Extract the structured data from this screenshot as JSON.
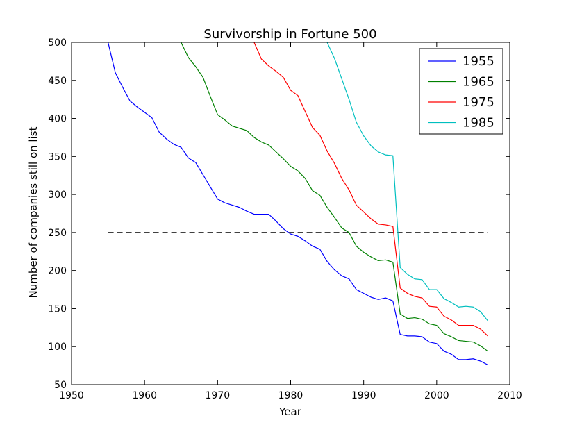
{
  "chart_data": {
    "type": "line",
    "title": "Survivorship in Fortune 500",
    "xlabel": "Year",
    "ylabel": "Number of companies still on list",
    "xlim": [
      1950,
      2010
    ],
    "ylim": [
      50,
      500
    ],
    "xticks": [
      1950,
      1960,
      1970,
      1980,
      1990,
      2000,
      2010
    ],
    "yticks": [
      50,
      100,
      150,
      200,
      250,
      300,
      350,
      400,
      450,
      500
    ],
    "grid": false,
    "legend_position": "top-right",
    "reference_line": {
      "y": 250,
      "x_start": 1955,
      "x_end": 2007,
      "style": "dashed",
      "color": "#000000"
    },
    "series": [
      {
        "name": "1955",
        "color": "#0000ff",
        "x": [
          1955,
          1956,
          1957,
          1958,
          1959,
          1960,
          1961,
          1962,
          1963,
          1964,
          1965,
          1966,
          1967,
          1968,
          1969,
          1970,
          1971,
          1972,
          1973,
          1974,
          1975,
          1976,
          1977,
          1978,
          1979,
          1980,
          1981,
          1982,
          1983,
          1984,
          1985,
          1986,
          1987,
          1988,
          1989,
          1990,
          1991,
          1992,
          1993,
          1994,
          1995,
          1996,
          1997,
          1998,
          1999,
          2000,
          2001,
          2002,
          2003,
          2004,
          2005,
          2006,
          2007
        ],
        "y": [
          500,
          460,
          441,
          423,
          415,
          408,
          401,
          382,
          373,
          366,
          362,
          348,
          342,
          326,
          310,
          294,
          289,
          286,
          283,
          278,
          274,
          274,
          274,
          265,
          255,
          248,
          245,
          239,
          232,
          228,
          212,
          201,
          193,
          189,
          175,
          170,
          165,
          162,
          164,
          160,
          116,
          114,
          114,
          113,
          106,
          104,
          94,
          90,
          83,
          83,
          84,
          81,
          76
        ]
      },
      {
        "name": "1965",
        "color": "#008000",
        "x": [
          1965,
          1966,
          1967,
          1968,
          1969,
          1970,
          1971,
          1972,
          1973,
          1974,
          1975,
          1976,
          1977,
          1978,
          1979,
          1980,
          1981,
          1982,
          1983,
          1984,
          1985,
          1986,
          1987,
          1988,
          1989,
          1990,
          1991,
          1992,
          1993,
          1994,
          1995,
          1996,
          1997,
          1998,
          1999,
          2000,
          2001,
          2002,
          2003,
          2004,
          2005,
          2006,
          2007
        ],
        "y": [
          500,
          480,
          468,
          454,
          429,
          405,
          398,
          390,
          387,
          384,
          375,
          369,
          365,
          356,
          347,
          337,
          331,
          321,
          305,
          299,
          283,
          270,
          256,
          250,
          232,
          224,
          218,
          213,
          214,
          211,
          143,
          137,
          138,
          136,
          130,
          128,
          117,
          113,
          108,
          107,
          106,
          101,
          94
        ]
      },
      {
        "name": "1975",
        "color": "#ff0000",
        "x": [
          1975,
          1976,
          1977,
          1978,
          1979,
          1980,
          1981,
          1982,
          1983,
          1984,
          1985,
          1986,
          1987,
          1988,
          1989,
          1990,
          1991,
          1992,
          1993,
          1994,
          1995,
          1996,
          1997,
          1998,
          1999,
          2000,
          2001,
          2002,
          2003,
          2004,
          2005,
          2006,
          2007
        ],
        "y": [
          500,
          478,
          469,
          462,
          454,
          437,
          430,
          409,
          388,
          378,
          357,
          341,
          321,
          306,
          286,
          277,
          268,
          261,
          260,
          258,
          177,
          170,
          166,
          164,
          153,
          152,
          140,
          135,
          128,
          128,
          128,
          123,
          114
        ]
      },
      {
        "name": "1985",
        "color": "#00bfbf",
        "x": [
          1985,
          1986,
          1987,
          1988,
          1989,
          1990,
          1991,
          1992,
          1993,
          1994,
          1995,
          1996,
          1997,
          1998,
          1999,
          2000,
          2001,
          2002,
          2003,
          2004,
          2005,
          2006,
          2007
        ],
        "y": [
          500,
          479,
          452,
          425,
          395,
          377,
          364,
          356,
          352,
          351,
          204,
          195,
          189,
          188,
          175,
          175,
          163,
          158,
          152,
          153,
          152,
          146,
          134
        ]
      }
    ]
  }
}
